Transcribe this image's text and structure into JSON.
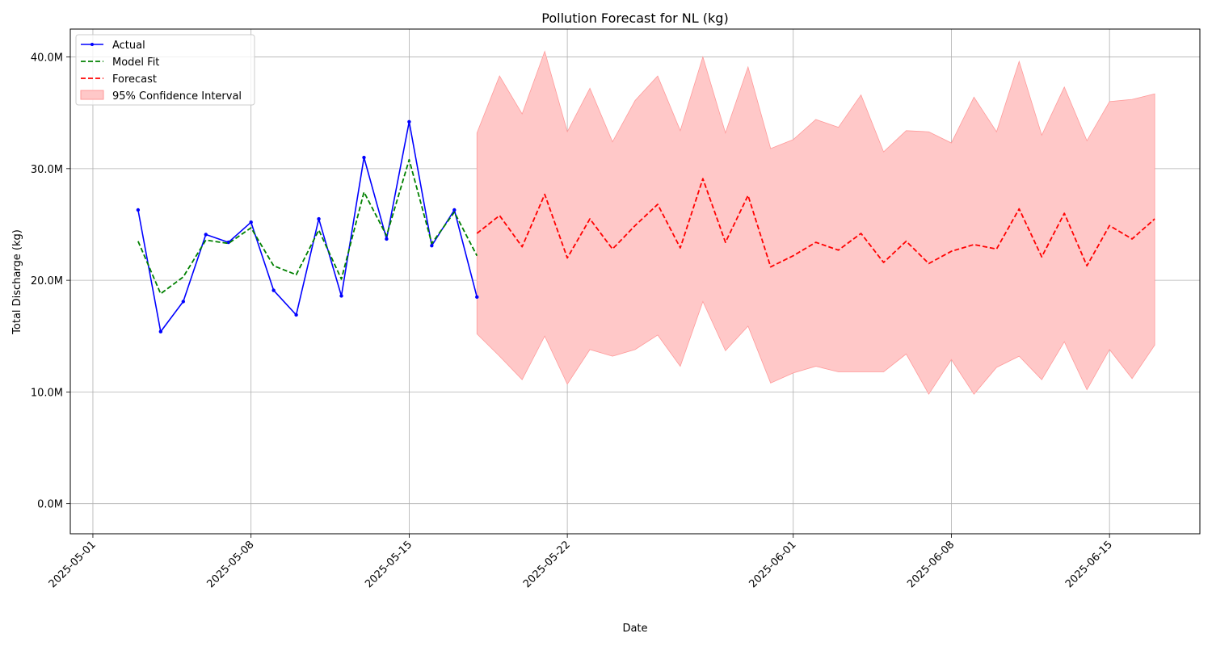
{
  "chart_data": {
    "type": "line",
    "title": "Pollution Forecast for NL (kg)",
    "xlabel": "Date",
    "ylabel": "Total Discharge (kg)",
    "xlim": [
      "2025-04-30",
      "2025-06-19"
    ],
    "ylim": [
      -2.7,
      42.5
    ],
    "x_ticks": [
      "2025-05-01",
      "2025-05-08",
      "2025-05-15",
      "2025-05-22",
      "2025-06-01",
      "2025-06-08",
      "2025-06-15"
    ],
    "y_ticks": [
      0,
      10,
      20,
      30,
      40
    ],
    "y_tick_labels": [
      "0.0M",
      "10.0M",
      "20.0M",
      "30.0M",
      "40.0M"
    ],
    "grid": true,
    "legend_position": "top-left",
    "colors": {
      "actual": "#0000ff",
      "model_fit": "#008000",
      "forecast": "#ff0000",
      "confidence_fill": "#ffc8c8",
      "confidence_edge": "#ff9a9a"
    },
    "legend": [
      "Actual",
      "Model Fit",
      "Forecast",
      "95% Confidence Interval"
    ],
    "series": [
      {
        "name": "Actual",
        "style": "solid-markers",
        "x": [
          "2025-05-03",
          "2025-05-04",
          "2025-05-05",
          "2025-05-06",
          "2025-05-07",
          "2025-05-08",
          "2025-05-09",
          "2025-05-10",
          "2025-05-11",
          "2025-05-12",
          "2025-05-13",
          "2025-05-14",
          "2025-05-15",
          "2025-05-16",
          "2025-05-17",
          "2025-05-18"
        ],
        "y": [
          26.3,
          15.4,
          18.1,
          24.1,
          23.4,
          25.2,
          19.1,
          16.9,
          25.5,
          18.6,
          31.0,
          23.7,
          34.2,
          23.1,
          26.3,
          18.5
        ]
      },
      {
        "name": "Model Fit",
        "style": "dashed",
        "x": [
          "2025-05-03",
          "2025-05-04",
          "2025-05-05",
          "2025-05-06",
          "2025-05-07",
          "2025-05-08",
          "2025-05-09",
          "2025-05-10",
          "2025-05-11",
          "2025-05-12",
          "2025-05-13",
          "2025-05-14",
          "2025-05-15",
          "2025-05-16",
          "2025-05-17",
          "2025-05-18"
        ],
        "y": [
          23.5,
          18.8,
          20.3,
          23.6,
          23.3,
          24.7,
          21.3,
          20.5,
          24.5,
          20.1,
          27.9,
          24.0,
          30.8,
          23.3,
          26.1,
          22.2
        ]
      },
      {
        "name": "Forecast",
        "style": "dashed",
        "x": [
          "2025-05-18",
          "2025-05-19",
          "2025-05-20",
          "2025-05-21",
          "2025-05-22",
          "2025-05-23",
          "2025-05-24",
          "2025-05-25",
          "2025-05-26",
          "2025-05-27",
          "2025-05-28",
          "2025-05-29",
          "2025-05-30",
          "2025-05-31",
          "2025-06-01",
          "2025-06-02",
          "2025-06-03",
          "2025-06-04",
          "2025-06-05",
          "2025-06-06",
          "2025-06-07",
          "2025-06-08",
          "2025-06-09",
          "2025-06-10",
          "2025-06-11",
          "2025-06-12",
          "2025-06-13",
          "2025-06-14",
          "2025-06-15",
          "2025-06-16",
          "2025-06-17"
        ],
        "y": [
          24.2,
          25.8,
          23.0,
          27.7,
          22.0,
          25.5,
          22.8,
          24.9,
          26.8,
          22.9,
          29.1,
          23.4,
          27.6,
          21.2,
          22.2,
          23.4,
          22.7,
          24.2,
          21.6,
          23.5,
          21.5,
          22.6,
          23.2,
          22.8,
          26.4,
          22.1,
          26.0,
          21.3,
          24.9,
          23.7,
          25.5
        ]
      }
    ],
    "confidence_interval": {
      "name": "95% Confidence Interval",
      "x": [
        "2025-05-18",
        "2025-05-19",
        "2025-05-20",
        "2025-05-21",
        "2025-05-22",
        "2025-05-23",
        "2025-05-24",
        "2025-05-25",
        "2025-05-26",
        "2025-05-27",
        "2025-05-28",
        "2025-05-29",
        "2025-05-30",
        "2025-05-31",
        "2025-06-01",
        "2025-06-02",
        "2025-06-03",
        "2025-06-04",
        "2025-06-05",
        "2025-06-06",
        "2025-06-07",
        "2025-06-08",
        "2025-06-09",
        "2025-06-10",
        "2025-06-11",
        "2025-06-12",
        "2025-06-13",
        "2025-06-14",
        "2025-06-15",
        "2025-06-16",
        "2025-06-17"
      ],
      "lower": [
        15.2,
        13.2,
        11.1,
        15.0,
        10.7,
        13.8,
        13.2,
        13.8,
        15.1,
        12.3,
        18.1,
        13.7,
        15.9,
        10.8,
        11.7,
        12.3,
        11.8,
        11.8,
        11.8,
        13.4,
        9.8,
        12.9,
        9.8,
        12.2,
        13.2,
        11.1,
        14.5,
        10.2,
        13.8,
        11.2,
        14.2
      ],
      "upper": [
        33.2,
        38.3,
        34.9,
        40.5,
        33.3,
        37.2,
        32.4,
        36.1,
        38.3,
        33.4,
        40.0,
        33.2,
        39.1,
        31.8,
        32.6,
        34.4,
        33.7,
        36.6,
        31.5,
        33.4,
        33.3,
        32.3,
        36.4,
        33.3,
        39.6,
        33.0,
        37.3,
        32.5,
        36.0,
        36.2,
        36.7
      ]
    }
  }
}
